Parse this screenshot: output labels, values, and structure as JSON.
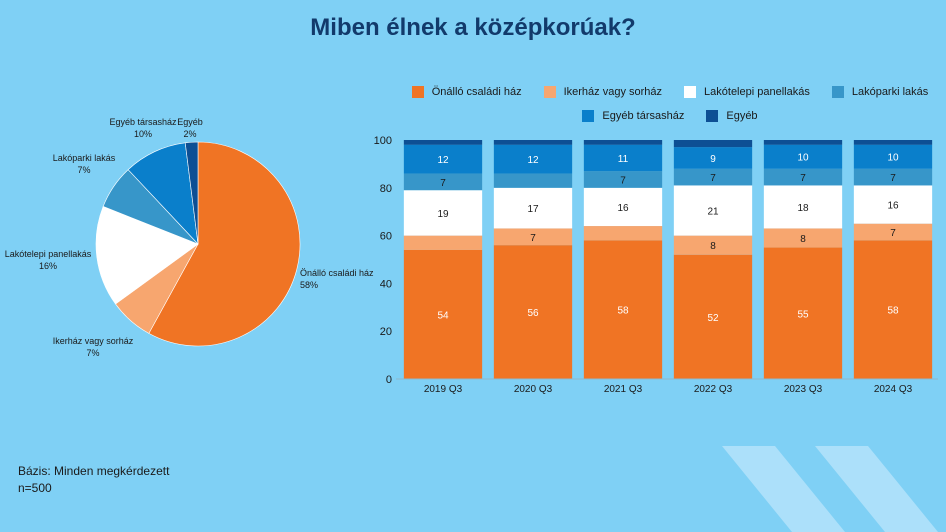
{
  "title": "Miben élnek a középkorúak?",
  "footnote": {
    "base": "Bázis: Minden megkérdezett",
    "n": "n=500"
  },
  "colors": {
    "Önálló családi ház": "#f07424",
    "Ikerház vagy sorház": "#f7a66f",
    "Lakótelepi panellakás": "#ffffff",
    "Lakóparki lakás": "#3796c9",
    "Egyéb társasház": "#0a7fcb",
    "Egyéb": "#0d4f94"
  },
  "chart_data": [
    {
      "type": "pie",
      "title": "",
      "slices": [
        {
          "name": "Önálló családi ház",
          "value": 58,
          "label": "58%"
        },
        {
          "name": "Ikerház vagy sorház",
          "value": 7,
          "label": "7%"
        },
        {
          "name": "Lakótelepi panellakás",
          "value": 16,
          "label": "16%"
        },
        {
          "name": "Lakóparki lakás",
          "value": 7,
          "label": "7%"
        },
        {
          "name": "Egyéb társasház",
          "value": 10,
          "label": "10%"
        },
        {
          "name": "Egyéb",
          "value": 2,
          "label": "2%"
        }
      ]
    },
    {
      "type": "bar",
      "stacked": true,
      "title": "",
      "categories": [
        "2019 Q3",
        "2020 Q3",
        "2021 Q3",
        "2022 Q3",
        "2023 Q3",
        "2024 Q3"
      ],
      "ylim": [
        0,
        100
      ],
      "yticks": [
        0,
        20,
        40,
        60,
        80,
        100
      ],
      "legend_position": "top",
      "series": [
        {
          "name": "Önálló családi ház",
          "values": [
            54,
            56,
            58,
            52,
            55,
            58
          ],
          "labels": [
            "54",
            "56",
            "58",
            "52",
            "55",
            "58"
          ]
        },
        {
          "name": "Ikerház vagy sorház",
          "values": [
            6,
            7,
            6,
            8,
            8,
            7
          ],
          "labels": [
            "",
            "7",
            "",
            "8",
            "8",
            "7"
          ]
        },
        {
          "name": "Lakótelepi panellakás",
          "values": [
            19,
            17,
            16,
            21,
            18,
            16
          ],
          "labels": [
            "19",
            "17",
            "16",
            "21",
            "18",
            "16"
          ]
        },
        {
          "name": "Lakóparki lakás",
          "values": [
            7,
            6,
            7,
            7,
            7,
            7
          ],
          "labels": [
            "7",
            "",
            "7",
            "7",
            "7",
            "7"
          ]
        },
        {
          "name": "Egyéb társasház",
          "values": [
            12,
            12,
            11,
            9,
            10,
            10
          ],
          "labels": [
            "12",
            "12",
            "11",
            "9",
            "10",
            "10"
          ]
        },
        {
          "name": "Egyéb",
          "values": [
            2,
            2,
            2,
            3,
            2,
            2
          ],
          "labels": [
            "",
            "",
            "",
            "",
            "",
            ""
          ]
        }
      ]
    }
  ]
}
